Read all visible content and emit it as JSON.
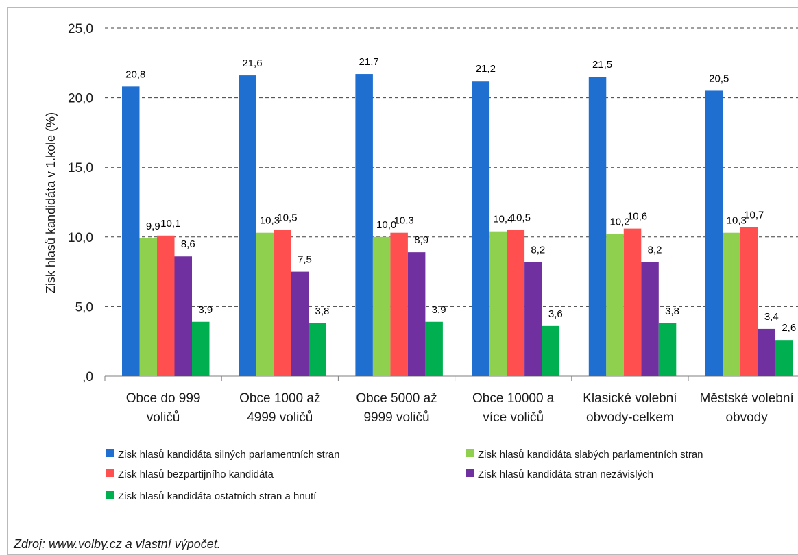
{
  "chart_data": {
    "type": "bar",
    "ylabel": "Zisk hlasů kandidáta v 1.kole (%)",
    "ylim": [
      0,
      25
    ],
    "y_ticks": [
      "25,0",
      "20,0",
      "15,0",
      "10,0",
      "5,0",
      ",0"
    ],
    "y_tick_values": [
      25,
      20,
      15,
      10,
      5,
      0
    ],
    "grid": "dashed horizontal",
    "legend_position": "bottom",
    "categories": [
      [
        "Obce do 999",
        "voličů"
      ],
      [
        "Obce 1000 až",
        "4999 voličů"
      ],
      [
        "Obce 5000 až",
        "9999 voličů"
      ],
      [
        "Obce 10000 a",
        "více voličů"
      ],
      [
        "Klasické volební",
        "obvody-celkem"
      ],
      [
        "Městské volební",
        "obvody"
      ]
    ],
    "series": [
      {
        "name": "Zisk hlasů kandidáta silných parlamentních stran",
        "color": "#1f6fd1",
        "values": [
          20.8,
          21.6,
          21.7,
          21.2,
          21.5,
          20.5
        ],
        "labels": [
          "20,8",
          "21,6",
          "21,7",
          "21,2",
          "21,5",
          "20,5"
        ]
      },
      {
        "name": "Zisk hlasů kandidáta slabých parlamentních stran",
        "color": "#8fd14f",
        "values": [
          9.9,
          10.3,
          10.0,
          10.4,
          10.2,
          10.3
        ],
        "labels": [
          "9,9",
          "10,3",
          "10,0",
          "10,4",
          "10,2",
          "10,3"
        ]
      },
      {
        "name": "Zisk hlasů bezpartijního kandidáta",
        "color": "#ff4f4f",
        "values": [
          10.1,
          10.5,
          10.3,
          10.5,
          10.6,
          10.7
        ],
        "labels": [
          "10,1",
          "10,5",
          "10,3",
          "10,5",
          "10,6",
          "10,7"
        ]
      },
      {
        "name": "Zisk hlasů kandidáta stran nezávislých",
        "color": "#7030a0",
        "values": [
          8.6,
          7.5,
          8.9,
          8.2,
          8.2,
          3.4
        ],
        "labels": [
          "8,6",
          "7,5",
          "8,9",
          "8,2",
          "8,2",
          "3,4"
        ]
      },
      {
        "name": "Zisk hlasů kandidáta ostatních stran a hnutí",
        "color": "#00b050",
        "values": [
          3.9,
          3.8,
          3.9,
          3.6,
          3.8,
          2.6
        ],
        "labels": [
          "3,9",
          "3,8",
          "3,9",
          "3,6",
          "3,8",
          "2,6"
        ]
      }
    ]
  },
  "source_note": "Zdroj: www.volby.cz a vlastní výpočet."
}
